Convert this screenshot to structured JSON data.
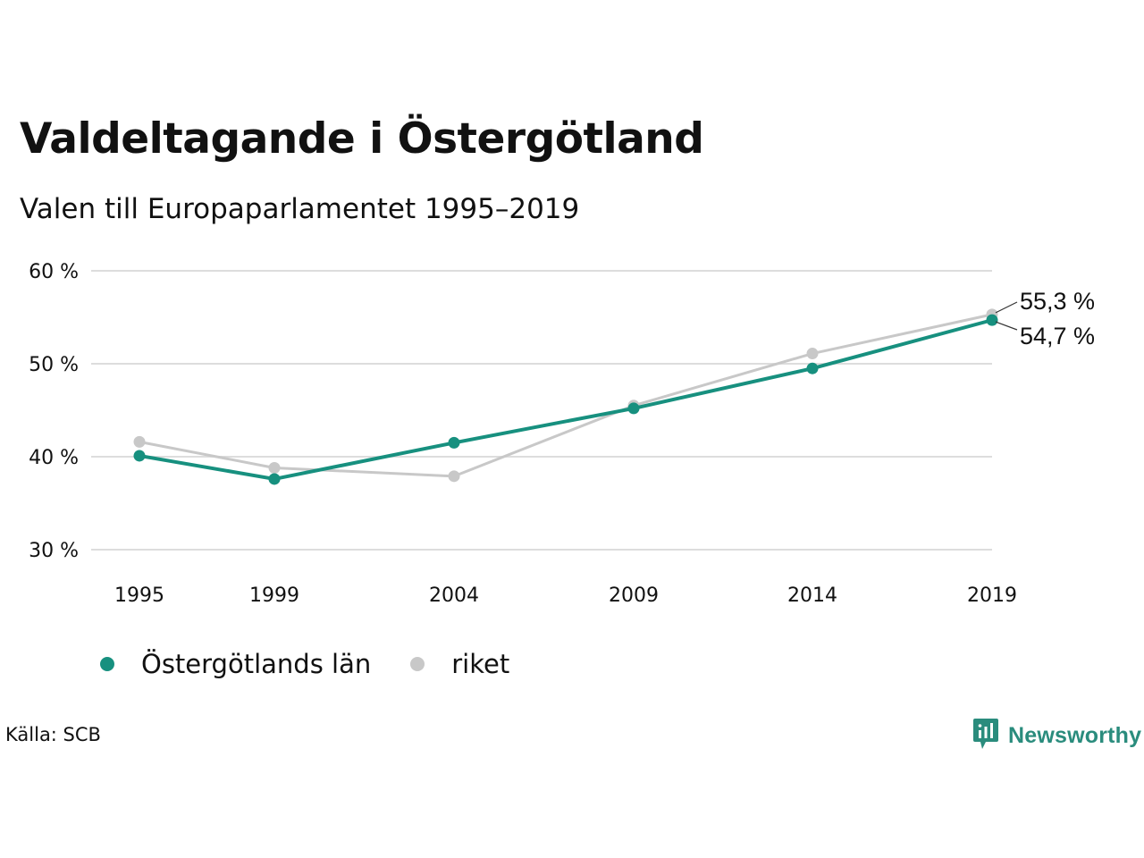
{
  "title": "Valdeltagande i Östergötland",
  "subtitle": "Valen till Europaparlamentet 1995–2019",
  "source": "Källa: SCB",
  "brand": {
    "name": "Newsworthy",
    "icon": "newsworthy-logo-icon",
    "color": "#2a8c7d"
  },
  "colors": {
    "primary": "#17907f",
    "secondary": "#c8c8c8",
    "grid": "#dddddd"
  },
  "chart_data": {
    "type": "line",
    "title": "Valdeltagande i Östergötland",
    "subtitle": "Valen till Europaparlamentet 1995–2019",
    "x": [
      1995,
      1999,
      2004,
      2009,
      2014,
      2019
    ],
    "x_tick_labels": [
      "1995",
      "1999",
      "2004",
      "2009",
      "2014",
      "2019"
    ],
    "y_ticks": [
      30,
      40,
      50,
      60
    ],
    "y_tick_labels": [
      "30 %",
      "40 %",
      "50 %",
      "60 %"
    ],
    "ylim": [
      30,
      60
    ],
    "grid": true,
    "legend_position": "bottom-left",
    "series": [
      {
        "name": "riket",
        "color": "#c8c8c8",
        "values": [
          41.6,
          38.8,
          37.9,
          45.5,
          51.1,
          55.3
        ],
        "end_label": "55,3 %"
      },
      {
        "name": "Östergötlands län",
        "color": "#17907f",
        "values": [
          40.1,
          37.6,
          41.5,
          45.2,
          49.5,
          54.7
        ],
        "end_label": "54,7 %"
      }
    ],
    "legend": [
      "Östergötlands län",
      "riket"
    ]
  }
}
